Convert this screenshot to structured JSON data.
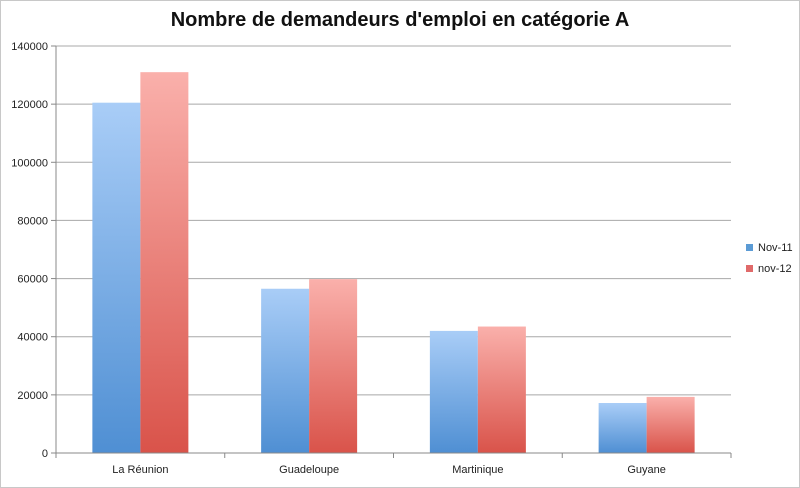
{
  "chart_data": {
    "type": "bar",
    "title": "Nombre de demandeurs d'emploi en catégorie A",
    "categories": [
      "La Réunion",
      "Guadeloupe",
      "Martinique",
      "Guyane"
    ],
    "series": [
      {
        "name": "Nov-11",
        "values": [
          120500,
          56500,
          42000,
          17200
        ],
        "color": "#5b9bd5"
      },
      {
        "name": "nov-12",
        "values": [
          131000,
          59800,
          43500,
          19300
        ],
        "color": "#e06a6a"
      }
    ],
    "ylim": [
      0,
      140000
    ],
    "yticks": [
      0,
      20000,
      40000,
      60000,
      80000,
      100000,
      120000,
      140000
    ],
    "grid": true,
    "legend_position": "right"
  }
}
